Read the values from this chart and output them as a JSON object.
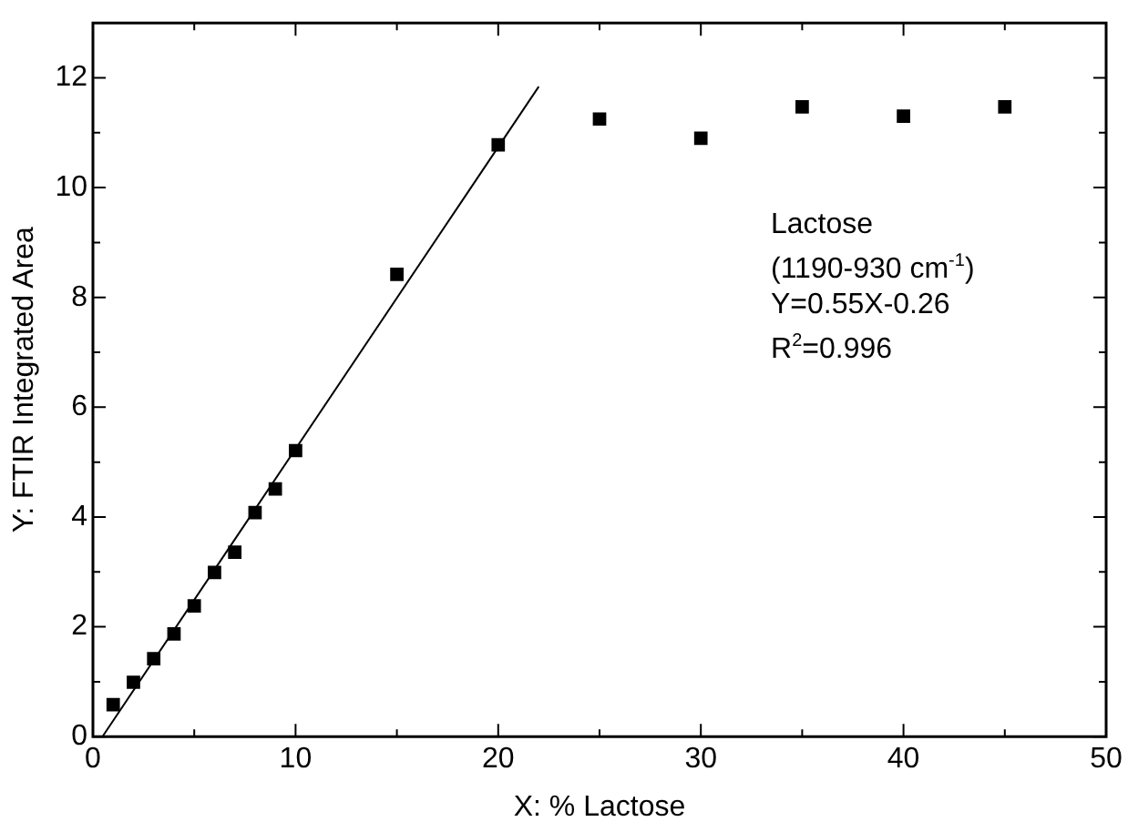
{
  "chart_data": {
    "type": "scatter",
    "xlabel": "X: % Lactose",
    "ylabel": "Y: FTIR Integrated Area",
    "xlim": [
      0,
      50
    ],
    "xticks": [
      0,
      {
        "value": 5,
        "label": null
      },
      10,
      {
        "value": 15,
        "label": null
      },
      20,
      {
        "value": 25,
        "label": null
      },
      30,
      {
        "value": 35,
        "label": null
      },
      40,
      {
        "value": 45,
        "label": null
      },
      50
    ],
    "ylim": [
      0,
      13
    ],
    "yticks": [
      0,
      {
        "value": 1,
        "label": null
      },
      2,
      {
        "value": 3,
        "label": null
      },
      4,
      {
        "value": 5,
        "label": null
      },
      6,
      {
        "value": 7,
        "label": null
      },
      8,
      {
        "value": 9,
        "label": null
      },
      10,
      {
        "value": 11,
        "label": null
      },
      12
    ],
    "grid": false,
    "legend": false,
    "series": [
      {
        "marker": "square",
        "color": "#000000",
        "x": [
          1,
          2,
          3,
          4,
          5,
          6,
          7,
          8,
          9,
          10,
          15,
          20,
          25,
          30,
          35,
          40,
          45
        ],
        "values": [
          0.58,
          0.99,
          1.42,
          1.87,
          2.38,
          2.99,
          3.36,
          4.08,
          4.51,
          5.21,
          8.42,
          10.78,
          11.25,
          10.9,
          11.47,
          11.3,
          11.47
        ]
      },
      {
        "type": "line",
        "marker": "none",
        "color": "#000000",
        "x": [
          0.47,
          22
        ],
        "values": [
          0,
          11.84
        ]
      }
    ],
    "annotations": [
      "Lactose",
      "(1190-930 cm$^{-1}$)",
      "Y=0.55X-0.26",
      "R$^{2}$=0.996"
    ]
  }
}
